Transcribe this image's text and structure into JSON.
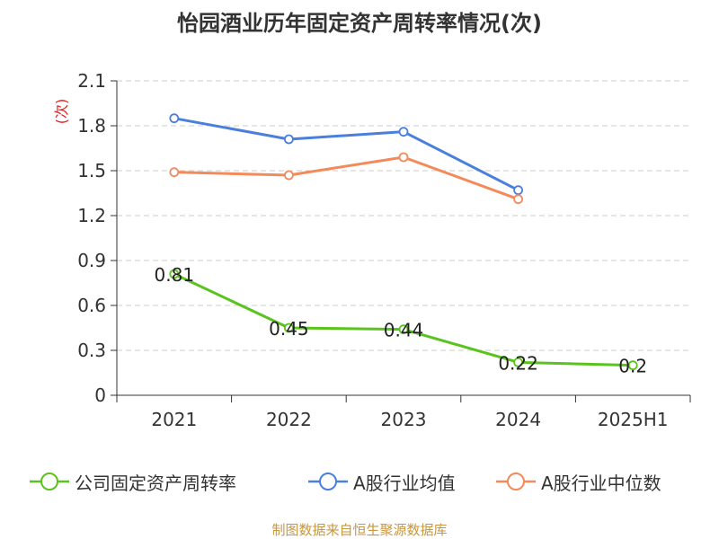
{
  "title": "怡园酒业历年固定资产周转率情况(次)",
  "source_note": "制图数据来自恒生聚源数据库",
  "chart_data": {
    "type": "line",
    "title": "怡园酒业历年固定资产周转率情况(次)",
    "ylabel": "(次)",
    "xlabel": "",
    "categories": [
      "2021",
      "2022",
      "2023",
      "2024",
      "2025H1"
    ],
    "yticks": [
      "0",
      "0.3",
      "0.6",
      "0.9",
      "1.2",
      "1.5",
      "1.8",
      "2.1"
    ],
    "ylim": [
      0,
      2.1
    ],
    "grid": true,
    "legend_position": "bottom",
    "series": [
      {
        "name": "公司固定资产周转率",
        "color": "#5ac31e",
        "values": [
          0.81,
          0.45,
          0.44,
          0.22,
          0.2
        ],
        "labels": [
          "0.81",
          "0.45",
          "0.44",
          "0.22",
          "0.2"
        ]
      },
      {
        "name": "A股行业均值",
        "color": "#4a7fdc",
        "values": [
          1.85,
          1.71,
          1.76,
          1.37,
          null
        ]
      },
      {
        "name": "A股行业中位数",
        "color": "#f48a5a",
        "values": [
          1.49,
          1.47,
          1.59,
          1.31,
          null
        ]
      }
    ]
  }
}
